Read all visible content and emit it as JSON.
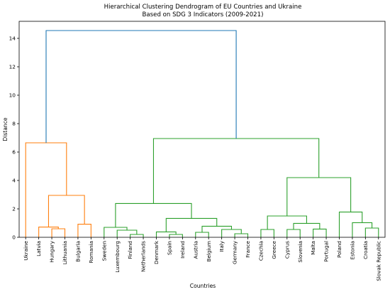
{
  "chart_data": {
    "type": "dendrogram",
    "title": "Hierarchical Clustering Dendrogram of EU Countries and Ukraine",
    "subtitle": "Based on SDG 3 Indicators (2009-2021)",
    "xlabel": "Countries",
    "ylabel": "Distance",
    "ylim": [
      0,
      15.2
    ],
    "yticks": [
      0,
      2,
      4,
      6,
      8,
      10,
      12,
      14
    ],
    "grid": false,
    "leaves": [
      "Ukraine",
      "Latvia",
      "Hungary",
      "Lithuania",
      "Bulgaria",
      "Romania",
      "Sweden",
      "Luxembourg",
      "Finland",
      "Netherlands",
      "Denmark",
      "Spain",
      "Ireland",
      "Austria",
      "Belgium",
      "Italy",
      "Germany",
      "France",
      "Czechia",
      "Greece",
      "Cyprus",
      "Slovenia",
      "Malta",
      "Portugal",
      "Poland",
      "Estonia",
      "Croatia",
      "Slovak Republic"
    ],
    "colors": {
      "cluster_1": "#ff7f0e",
      "cluster_2": "#2ca02c",
      "root": "#1f77b4"
    },
    "merges": [
      {
        "left": "Hungary",
        "right": "Lithuania",
        "height": 0.6,
        "color": "cluster_1"
      },
      {
        "left": "Latvia",
        "right": "Hungary+Lithuania",
        "height": 0.72,
        "color": "cluster_1"
      },
      {
        "left": "Bulgaria",
        "right": "Romania",
        "height": 0.92,
        "color": "cluster_1"
      },
      {
        "left": "Latvia+Hungary+Lithuania",
        "right": "Bulgaria+Romania",
        "height": 2.95,
        "color": "cluster_1"
      },
      {
        "left": "Ukraine",
        "right": "Latvia..Romania",
        "height": 6.65,
        "color": "cluster_1"
      },
      {
        "left": "Finland",
        "right": "Netherlands",
        "height": 0.2,
        "color": "cluster_2"
      },
      {
        "left": "Luxembourg",
        "right": "Finland+Netherlands",
        "height": 0.5,
        "color": "cluster_2"
      },
      {
        "left": "Sweden",
        "right": "Luxembourg+Finland+Netherlands",
        "height": 0.7,
        "color": "cluster_2"
      },
      {
        "left": "Spain",
        "right": "Ireland",
        "height": 0.2,
        "color": "cluster_2"
      },
      {
        "left": "Denmark",
        "right": "Spain+Ireland",
        "height": 0.38,
        "color": "cluster_2"
      },
      {
        "left": "Austria",
        "right": "Belgium",
        "height": 0.35,
        "color": "cluster_2"
      },
      {
        "left": "Germany",
        "right": "France",
        "height": 0.25,
        "color": "cluster_2"
      },
      {
        "left": "Italy",
        "right": "Germany+France",
        "height": 0.55,
        "color": "cluster_2"
      },
      {
        "left": "Austria+Belgium",
        "right": "Italy+Germany+France",
        "height": 0.78,
        "color": "cluster_2"
      },
      {
        "left": "Denmark+Spain+Ireland",
        "right": "Austria..France",
        "height": 1.33,
        "color": "cluster_2"
      },
      {
        "left": "Sweden..Netherlands",
        "right": "Denmark..France",
        "height": 2.38,
        "color": "cluster_2"
      },
      {
        "left": "Czechia",
        "right": "Greece",
        "height": 0.55,
        "color": "cluster_2"
      },
      {
        "left": "Cyprus",
        "right": "Slovenia",
        "height": 0.55,
        "color": "cluster_2"
      },
      {
        "left": "Malta",
        "right": "Portugal",
        "height": 0.58,
        "color": "cluster_2"
      },
      {
        "left": "Cyprus+Slovenia",
        "right": "Malta+Portugal",
        "height": 0.98,
        "color": "cluster_2"
      },
      {
        "left": "Czechia+Greece",
        "right": "Cyprus..Portugal",
        "height": 1.5,
        "color": "cluster_2"
      },
      {
        "left": "Croatia",
        "right": "Slovak Republic",
        "height": 0.65,
        "color": "cluster_2"
      },
      {
        "left": "Estonia",
        "right": "Croatia+Slovak Republic",
        "height": 1.03,
        "color": "cluster_2"
      },
      {
        "left": "Poland",
        "right": "Estonia+Croatia+Slovak Republic",
        "height": 1.78,
        "color": "cluster_2"
      },
      {
        "left": "Czechia..Portugal",
        "right": "Poland..Slovak Republic",
        "height": 4.2,
        "color": "cluster_2"
      },
      {
        "left": "Sweden..France",
        "right": "Czechia..Slovak Republic",
        "height": 6.95,
        "color": "cluster_2"
      },
      {
        "left": "Ukraine..Romania",
        "right": "Sweden..Slovak Republic",
        "height": 14.55,
        "color": "root"
      }
    ]
  }
}
